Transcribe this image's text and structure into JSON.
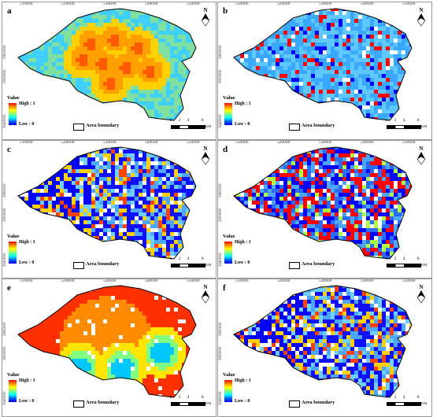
{
  "x_ticks": [
    "510000",
    "520000",
    "530000",
    "540000",
    "550000"
  ],
  "y_ticks": [
    "3965000",
    "3950000",
    "3940000"
  ],
  "legend": {
    "title": "Value",
    "high": "High : 1",
    "low": "Low : 0"
  },
  "boundary_label": "Area boundary",
  "scale": {
    "ticks": [
      "0",
      "2",
      "4",
      "8"
    ],
    "unit": "KM"
  },
  "north_label": "N",
  "panels": [
    {
      "id": "a",
      "style": "hotspot"
    },
    {
      "id": "b",
      "style": "cyan"
    },
    {
      "id": "c",
      "style": "blue-mixed"
    },
    {
      "id": "d",
      "style": "red-mixed"
    },
    {
      "id": "e",
      "style": "warm-gradient"
    },
    {
      "id": "f",
      "style": "blue-mixed"
    }
  ],
  "colors": {
    "high": "#ff0000",
    "mid": "#ffff00",
    "low": "#0000ff",
    "cyan": "#00c8ff"
  }
}
